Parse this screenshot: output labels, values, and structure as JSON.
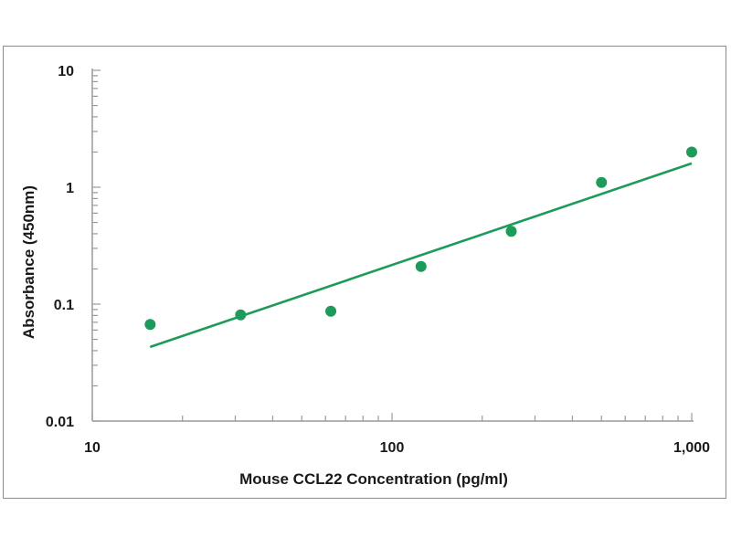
{
  "chart_data": {
    "type": "scatter",
    "title": "",
    "xlabel": "Mouse CCL22 Concentration (pg/ml)",
    "ylabel": "Absorbance (450nm)",
    "xscale": "log",
    "yscale": "log",
    "xlim": [
      10,
      1000
    ],
    "ylim": [
      0.01,
      10
    ],
    "x_tick_labels": [
      "10",
      "100",
      "1,000"
    ],
    "y_tick_labels": [
      "10",
      "1",
      "0.1",
      "0.01"
    ],
    "grid": false,
    "series": [
      {
        "type": "scatter",
        "color": "#1e9a5a",
        "x": [
          15.6,
          31.25,
          62.5,
          125,
          250,
          500,
          1000
        ],
        "y": [
          0.067,
          0.081,
          0.087,
          0.21,
          0.42,
          1.1,
          2.0
        ]
      },
      {
        "type": "line",
        "fit": "power-law trend line",
        "color": "#1e9a5a",
        "x": [
          15.6,
          1000
        ],
        "y": [
          0.043,
          1.6
        ]
      }
    ]
  }
}
